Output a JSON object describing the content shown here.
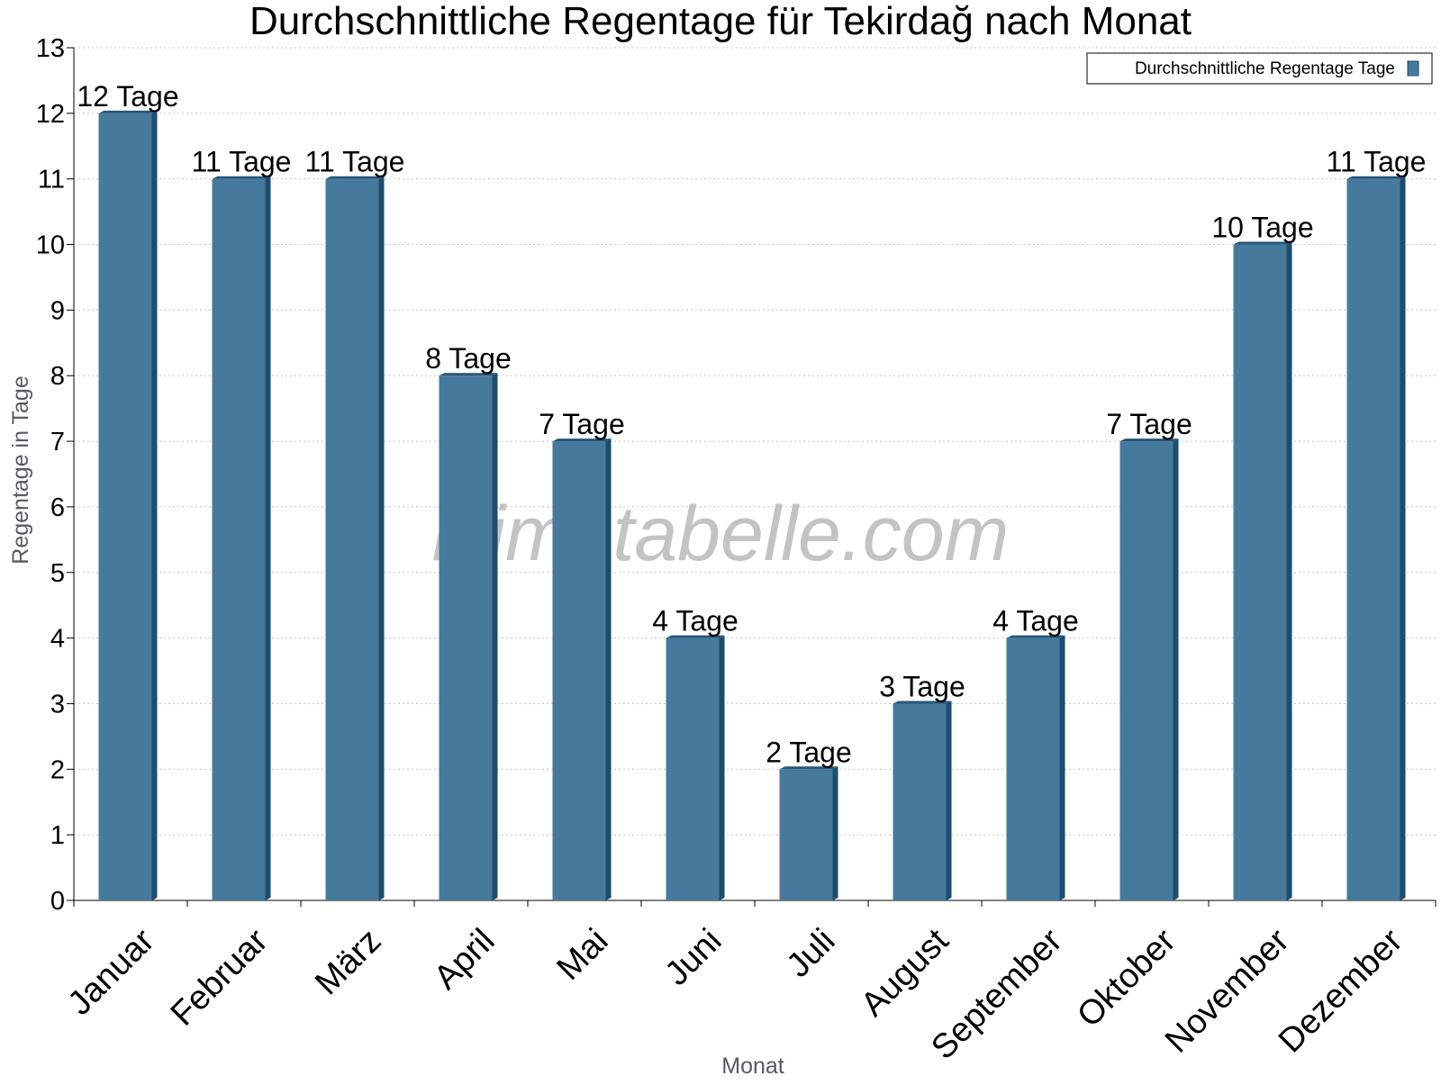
{
  "chart_data": {
    "type": "bar",
    "title": "Durchschnittliche Regentage für Tekirdağ nach Monat",
    "xlabel": "Monat",
    "ylabel": "Regentage in Tage",
    "categories": [
      "Januar",
      "Februar",
      "März",
      "April",
      "Mai",
      "Juni",
      "Juli",
      "August",
      "September",
      "Oktober",
      "November",
      "Dezember"
    ],
    "series": [
      {
        "name": "Durchschnittliche Regentage Tage",
        "values": [
          12,
          11,
          11,
          8,
          7,
          4,
          2,
          3,
          4,
          7,
          10,
          11
        ],
        "color": "#467a9c",
        "side_color": "#1d4d6e",
        "top_color": "#25557a"
      }
    ],
    "data_labels": [
      "12 Tage",
      "11 Tage",
      "11 Tage",
      "8 Tage",
      "7 Tage",
      "4 Tage",
      "2 Tage",
      "3 Tage",
      "4 Tage",
      "7 Tage",
      "10 Tage",
      "11 Tage"
    ],
    "yticks": [
      "0",
      "1",
      "2",
      "3",
      "4",
      "5",
      "6",
      "7",
      "8",
      "9",
      "10",
      "11",
      "12",
      "13"
    ],
    "ylim": [
      0,
      13
    ],
    "grid": true,
    "grid_style": "dotted",
    "legend_position": "top-right",
    "watermark": "klimatabelle.com"
  }
}
